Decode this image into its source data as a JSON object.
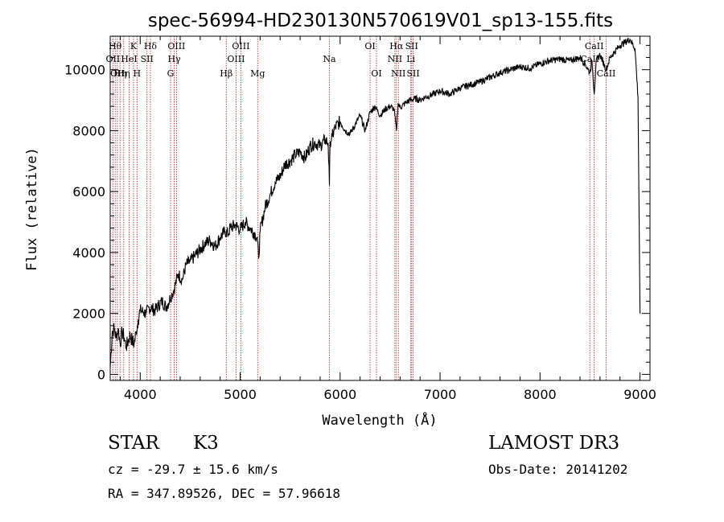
{
  "chart_data": {
    "type": "line",
    "title": "spec-56994-HD230130N570619V01_sp13-155.fits",
    "xlabel": "Wavelength (Å)",
    "ylabel": "Flux (relative)",
    "xlim": [
      3700,
      9100
    ],
    "ylim": [
      -200,
      11100
    ],
    "xticks": [
      4000,
      5000,
      6000,
      7000,
      8000,
      9000
    ],
    "yticks": [
      0,
      2000,
      4000,
      6000,
      8000,
      10000
    ],
    "x_minor_step": 200,
    "y_minor_step": 400,
    "grid": false,
    "series": [
      {
        "name": "spectrum",
        "x": [
          3700,
          3720,
          3740,
          3760,
          3780,
          3800,
          3820,
          3840,
          3860,
          3880,
          3900,
          3920,
          3940,
          3960,
          3980,
          4000,
          4030,
          4060,
          4090,
          4120,
          4150,
          4180,
          4220,
          4260,
          4300,
          4340,
          4380,
          4420,
          4460,
          4500,
          4550,
          4600,
          4650,
          4700,
          4750,
          4800,
          4850,
          4880,
          4900,
          4950,
          5000,
          5050,
          5100,
          5150,
          5170,
          5185,
          5200,
          5250,
          5300,
          5350,
          5400,
          5450,
          5500,
          5550,
          5600,
          5650,
          5700,
          5750,
          5800,
          5850,
          5880,
          5893,
          5900,
          5920,
          5950,
          6000,
          6050,
          6100,
          6150,
          6200,
          6250,
          6300,
          6350,
          6400,
          6450,
          6500,
          6540,
          6563,
          6580,
          6600,
          6650,
          6700,
          6750,
          6800,
          6850,
          6900,
          7000,
          7100,
          7200,
          7300,
          7400,
          7500,
          7600,
          7700,
          7800,
          7900,
          8000,
          8100,
          8200,
          8300,
          8400,
          8450,
          8498,
          8520,
          8542,
          8560,
          8600,
          8662,
          8700,
          8750,
          8800,
          8850,
          8900,
          8950,
          8980,
          9000
        ],
        "y": [
          200,
          1400,
          1500,
          1200,
          1500,
          1000,
          1400,
          1200,
          900,
          1100,
          1300,
          1100,
          1000,
          1400,
          1800,
          2100,
          2050,
          2000,
          2200,
          2150,
          2100,
          2250,
          2400,
          2200,
          2500,
          2800,
          3300,
          3100,
          3600,
          3700,
          3900,
          4100,
          4300,
          4400,
          4200,
          4500,
          4700,
          4600,
          4800,
          4900,
          4750,
          5000,
          4800,
          4600,
          4500,
          3800,
          4700,
          5500,
          5900,
          6300,
          6500,
          6900,
          7000,
          7200,
          7300,
          7100,
          7500,
          7600,
          7500,
          7700,
          7600,
          6200,
          7650,
          7800,
          8100,
          8300,
          8000,
          7900,
          8200,
          8500,
          8000,
          8600,
          8800,
          8500,
          8700,
          8800,
          8700,
          8000,
          8900,
          8750,
          8900,
          9000,
          9050,
          9000,
          9100,
          9150,
          9300,
          9200,
          9400,
          9500,
          9600,
          9750,
          9900,
          10000,
          10100,
          10050,
          10200,
          10300,
          10350,
          10300,
          10400,
          10200,
          9900,
          10300,
          9200,
          10250,
          10500,
          10000,
          10400,
          10600,
          10800,
          10900,
          11000,
          10700,
          9100,
          2000
        ]
      }
    ],
    "lines": [
      {
        "wl": 3727,
        "label": "OII",
        "row": 2
      },
      {
        "wl": 3750,
        "label": "Hθ",
        "row": 1
      },
      {
        "wl": 3771,
        "label": "OII",
        "row": 3
      },
      {
        "wl": 3798,
        "label": "Hη",
        "row": 3
      },
      {
        "wl": 3835,
        "label": "Hη",
        "row": 3
      },
      {
        "wl": 3889,
        "label": "HeI",
        "row": 2
      },
      {
        "wl": 3933,
        "label": "K",
        "row": 1
      },
      {
        "wl": 3968,
        "label": "H",
        "row": 3
      },
      {
        "wl": 4068,
        "label": "SII",
        "row": 2
      },
      {
        "wl": 4102,
        "label": "Hδ",
        "row": 1
      },
      {
        "wl": 4304,
        "label": "G",
        "row": 3
      },
      {
        "wl": 4340,
        "label": "Hγ",
        "row": 2
      },
      {
        "wl": 4363,
        "label": "OIII",
        "row": 1
      },
      {
        "wl": 4861,
        "label": "Hβ",
        "row": 3
      },
      {
        "wl": 4959,
        "label": "OIII",
        "row": 2
      },
      {
        "wl": 5007,
        "label": "OIII",
        "row": 1
      },
      {
        "wl": 5175,
        "label": "Mg",
        "row": 3
      },
      {
        "wl": 5893,
        "label": "Na",
        "row": 2
      },
      {
        "wl": 6300,
        "label": "OI",
        "row": 1
      },
      {
        "wl": 6364,
        "label": "OI",
        "row": 3
      },
      {
        "wl": 6548,
        "label": "NII",
        "row": 2
      },
      {
        "wl": 6563,
        "label": "Hα",
        "row": 1
      },
      {
        "wl": 6583,
        "label": "NII",
        "row": 3
      },
      {
        "wl": 6707,
        "label": "Li",
        "row": 2
      },
      {
        "wl": 6716,
        "label": "SII",
        "row": 1
      },
      {
        "wl": 6731,
        "label": "SII",
        "row": 3
      },
      {
        "wl": 8498,
        "label": "CaII",
        "row": 2
      },
      {
        "wl": 8542,
        "label": "CaII",
        "row": 1
      },
      {
        "wl": 8662,
        "label": "CaII",
        "row": 3
      }
    ]
  },
  "info": {
    "object_class": "STAR",
    "subclass": "K3",
    "survey": "LAMOST DR3",
    "velocity": "cz = -29.7 ± 15.6 km/s",
    "obs_date": "Obs-Date: 20141202",
    "coords": "RA = 347.89526, DEC =  57.96618"
  },
  "colors": {
    "axis": "#000000",
    "spectrum": "#000000",
    "line_marker": "#b22222"
  }
}
